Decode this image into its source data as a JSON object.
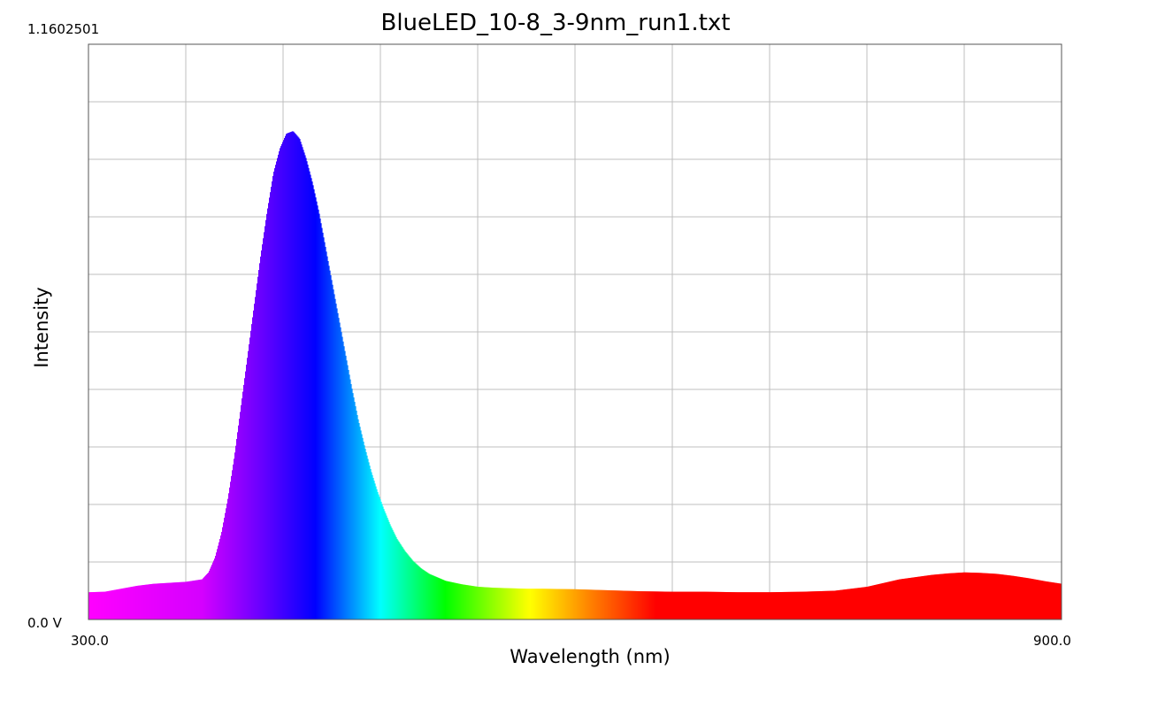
{
  "chart_data": {
    "type": "area",
    "title": "BlueLED_10-8_3-9nm_run1.txt",
    "xlabel": "Wavelength (nm)",
    "ylabel": "Intensity",
    "xlim": [
      300.0,
      900.0
    ],
    "ylim": [
      0.0,
      1.1602501
    ],
    "x_tick_labels": {
      "min": "300.0",
      "max": "900.0"
    },
    "y_tick_labels": {
      "min": "0.0 V",
      "max": "1.1602501"
    },
    "grid": true,
    "x_gridlines": 10,
    "y_gridlines": 10,
    "fill": "wavelength-spectrum-colors",
    "series": [
      {
        "x": [
          300,
          310,
          320,
          330,
          340,
          350,
          360,
          370,
          374,
          378,
          382,
          386,
          390,
          394,
          398,
          402,
          406,
          410,
          414,
          418,
          422,
          426,
          430,
          434,
          438,
          442,
          446,
          450,
          454,
          458,
          462,
          466,
          470,
          474,
          478,
          482,
          486,
          490,
          495,
          500,
          505,
          510,
          515,
          520,
          530,
          540,
          550,
          560,
          570,
          580,
          600,
          620,
          640,
          660,
          680,
          700,
          720,
          740,
          760,
          780,
          800,
          820,
          830,
          840,
          850,
          860,
          870,
          880,
          890,
          900
        ],
        "y": [
          0.055,
          0.056,
          0.062,
          0.068,
          0.072,
          0.074,
          0.076,
          0.081,
          0.095,
          0.125,
          0.175,
          0.245,
          0.33,
          0.43,
          0.53,
          0.63,
          0.73,
          0.82,
          0.9,
          0.95,
          0.98,
          0.985,
          0.97,
          0.93,
          0.88,
          0.82,
          0.75,
          0.68,
          0.61,
          0.54,
          0.47,
          0.405,
          0.35,
          0.3,
          0.258,
          0.222,
          0.19,
          0.163,
          0.138,
          0.118,
          0.103,
          0.092,
          0.085,
          0.078,
          0.071,
          0.066,
          0.064,
          0.063,
          0.062,
          0.062,
          0.061,
          0.059,
          0.057,
          0.056,
          0.056,
          0.055,
          0.055,
          0.056,
          0.058,
          0.066,
          0.081,
          0.09,
          0.093,
          0.095,
          0.094,
          0.092,
          0.088,
          0.083,
          0.077,
          0.072
        ]
      }
    ]
  }
}
